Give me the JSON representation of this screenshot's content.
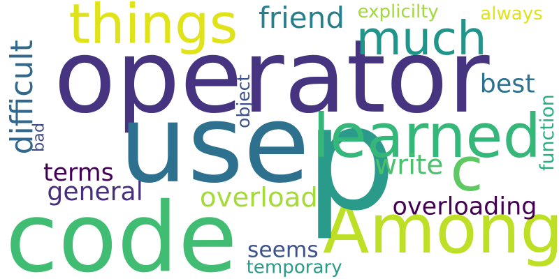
{
  "words": [
    {
      "text": "operator",
      "color": "#463480",
      "rotated": false
    },
    {
      "text": "use",
      "color": "#2d718e",
      "rotated": false
    },
    {
      "text": "code",
      "color": "#40bd72",
      "rotated": false
    },
    {
      "text": "Among",
      "color": "#bddf26",
      "rotated": false
    },
    {
      "text": "p",
      "color": "#2a9a8a",
      "rotated": false
    },
    {
      "text": "things",
      "color": "#dfe318",
      "rotated": false
    },
    {
      "text": "much",
      "color": "#1f958b",
      "rotated": false
    },
    {
      "text": "learned",
      "color": "#35b779",
      "rotated": false
    },
    {
      "text": "c",
      "color": "#5ec962",
      "rotated": false
    },
    {
      "text": "friend",
      "color": "#277f8e",
      "rotated": false
    },
    {
      "text": "explicilty",
      "color": "#a0da39",
      "rotated": false
    },
    {
      "text": "always",
      "color": "#dfe318",
      "rotated": false
    },
    {
      "text": "best",
      "color": "#2c728e",
      "rotated": false
    },
    {
      "text": "function",
      "color": "#29af7f",
      "rotated": true
    },
    {
      "text": "difficult",
      "color": "#31688e",
      "rotated": true
    },
    {
      "text": "bad",
      "color": "#3e4989",
      "rotated": true
    },
    {
      "text": "object",
      "color": "#3b528b",
      "rotated": true
    },
    {
      "text": "terms",
      "color": "#440154",
      "rotated": false
    },
    {
      "text": "general",
      "color": "#472f7d",
      "rotated": false
    },
    {
      "text": "write",
      "color": "#4ac16d",
      "rotated": false
    },
    {
      "text": "overload",
      "color": "#a5db36",
      "rotated": false
    },
    {
      "text": "overloading",
      "color": "#440154",
      "rotated": false
    },
    {
      "text": "seems",
      "color": "#3b528b",
      "rotated": false
    },
    {
      "text": "temporary",
      "color": "#2a9a8a",
      "rotated": false
    }
  ]
}
